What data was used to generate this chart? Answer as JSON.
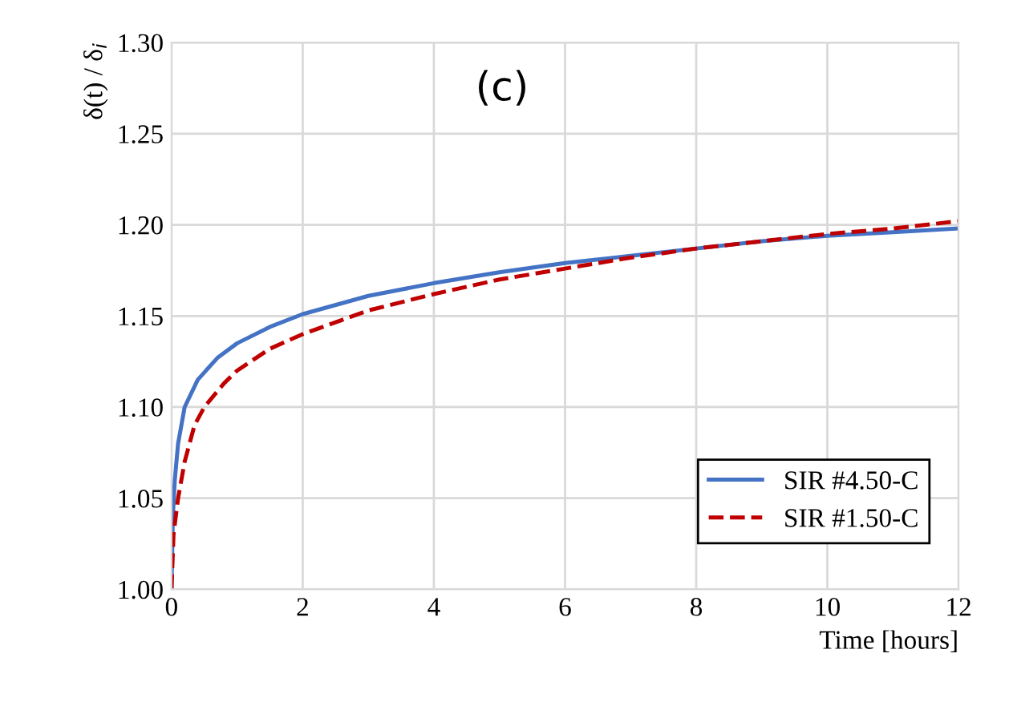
{
  "chart_data": {
    "type": "line",
    "ylabel": "δ(t) / δ$_{i}$",
    "xlabel": "Time [hours]",
    "annotations": [
      "(c)"
    ],
    "xlim": [
      0,
      12
    ],
    "xticks": [
      0,
      2,
      4,
      6,
      8,
      10,
      12
    ],
    "ylim": [
      1.0,
      1.3
    ],
    "yticks": [
      {
        "value": 1.0,
        "label": "1.00"
      },
      {
        "value": 1.05,
        "label": "1.05"
      },
      {
        "value": 1.1,
        "label": "1.10"
      },
      {
        "value": 1.15,
        "label": "1.15"
      },
      {
        "value": 1.2,
        "label": "1.20"
      },
      {
        "value": 1.25,
        "label": "1.25"
      },
      {
        "value": 1.3,
        "label": "1.30"
      }
    ],
    "grid": true,
    "legend": "bottom right",
    "series": [
      {
        "name": "SIR #4.50-C",
        "color": "#4472c4",
        "line_style": "solid",
        "x": [
          0,
          0.02,
          0.05,
          0.1,
          0.2,
          0.4,
          0.7,
          1,
          1.5,
          2,
          3,
          4,
          5,
          6,
          7,
          8,
          9,
          10,
          11,
          12
        ],
        "values": [
          1.0,
          1.04,
          1.06,
          1.08,
          1.1,
          1.115,
          1.127,
          1.135,
          1.144,
          1.151,
          1.161,
          1.168,
          1.174,
          1.179,
          1.183,
          1.187,
          1.191,
          1.194,
          1.196,
          1.198
        ]
      },
      {
        "name": "SIR #1.50-C",
        "color": "#c00000",
        "line_style": "dashed",
        "x": [
          0,
          0.03,
          0.1,
          0.2,
          0.35,
          0.5,
          0.8,
          1,
          1.5,
          2,
          3,
          4,
          5,
          6,
          7,
          8,
          9,
          10,
          11,
          12
        ],
        "values": [
          1.0,
          1.03,
          1.05,
          1.07,
          1.09,
          1.1,
          1.113,
          1.12,
          1.132,
          1.14,
          1.153,
          1.162,
          1.17,
          1.176,
          1.182,
          1.187,
          1.191,
          1.195,
          1.198,
          1.202
        ]
      }
    ]
  }
}
